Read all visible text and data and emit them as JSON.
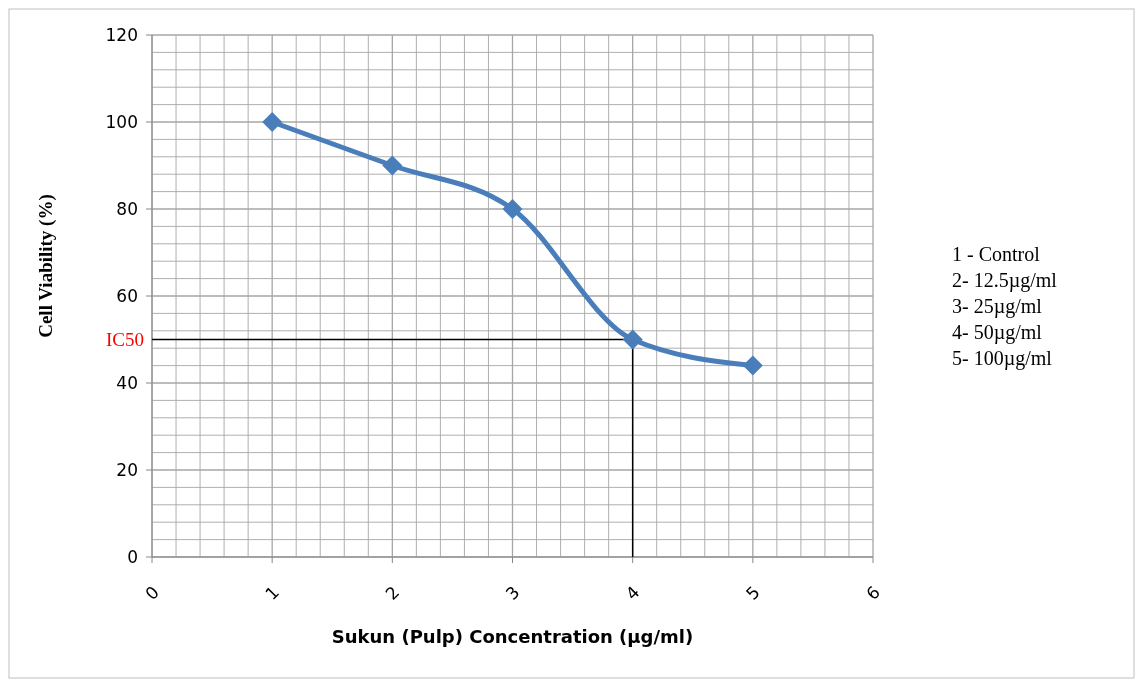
{
  "chart_data": {
    "type": "line",
    "xlabel": "Sukun (Pulp) Concentration (µg/ml)",
    "ylabel": "Cell Viability (%)",
    "x": [
      1,
      2,
      3,
      4,
      5
    ],
    "series": [
      {
        "color": "#4a7ebb",
        "values": [
          100,
          90,
          80,
          50,
          44
        ]
      }
    ],
    "xlim": [
      0,
      6
    ],
    "xticks": [
      0,
      1,
      2,
      3,
      4,
      5,
      6
    ],
    "ylim": [
      0,
      120
    ],
    "yticks": [
      0,
      20,
      40,
      60,
      80,
      100,
      120
    ],
    "grid": true,
    "marker": "diamond",
    "ref_lines": [
      {
        "axis": "y",
        "value": 50,
        "label": "IC50",
        "color": "#000000"
      },
      {
        "axis": "x",
        "value": 4,
        "color": "#000000"
      }
    ],
    "annotations": [
      "1 - Control",
      "2- 12.5µg/ml",
      "3- 25µg/ml",
      "4- 50µg/ml",
      "5- 100µg/ml"
    ]
  }
}
